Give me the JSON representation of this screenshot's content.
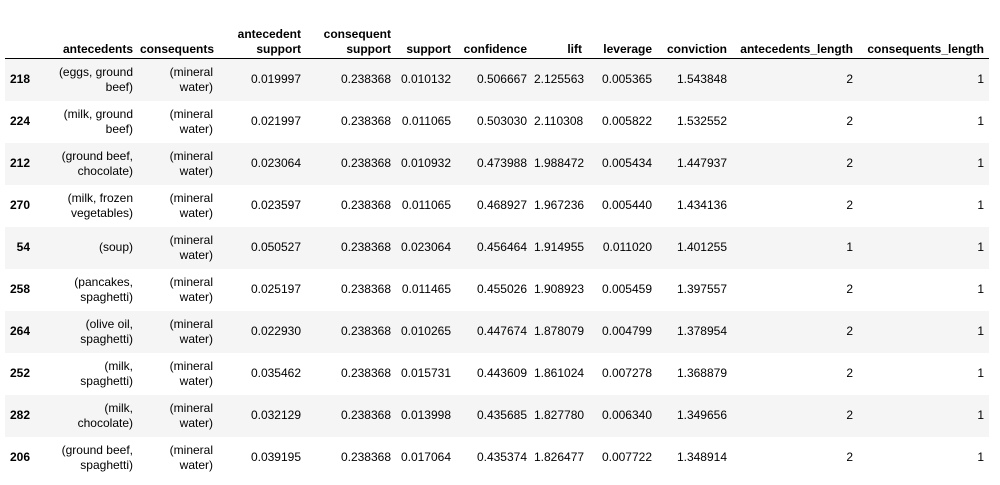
{
  "table": {
    "columns": [
      {
        "label_lines": [
          "antecedents"
        ]
      },
      {
        "label_lines": [
          "consequents"
        ]
      },
      {
        "label_lines": [
          "antecedent",
          "support"
        ]
      },
      {
        "label_lines": [
          "consequent",
          "support"
        ]
      },
      {
        "label_lines": [
          "support"
        ]
      },
      {
        "label_lines": [
          "confidence"
        ]
      },
      {
        "label_lines": [
          "lift"
        ]
      },
      {
        "label_lines": [
          "leverage"
        ]
      },
      {
        "label_lines": [
          "conviction"
        ]
      },
      {
        "label_lines": [
          "antecedents_length"
        ]
      },
      {
        "label_lines": [
          "consequents_length"
        ]
      }
    ],
    "rows": [
      {
        "index": "218",
        "antecedents": [
          "(eggs, ground",
          "beef)"
        ],
        "consequents": [
          "(mineral",
          "water)"
        ],
        "antecedent_support": "0.019997",
        "consequent_support": "0.238368",
        "support": "0.010132",
        "confidence": "0.506667",
        "lift": "2.125563",
        "leverage": "0.005365",
        "conviction": "1.543848",
        "antecedents_length": "2",
        "consequents_length": "1"
      },
      {
        "index": "224",
        "antecedents": [
          "(milk, ground",
          "beef)"
        ],
        "consequents": [
          "(mineral",
          "water)"
        ],
        "antecedent_support": "0.021997",
        "consequent_support": "0.238368",
        "support": "0.011065",
        "confidence": "0.503030",
        "lift": "2.110308",
        "leverage": "0.005822",
        "conviction": "1.532552",
        "antecedents_length": "2",
        "consequents_length": "1"
      },
      {
        "index": "212",
        "antecedents": [
          "(ground beef,",
          "chocolate)"
        ],
        "consequents": [
          "(mineral",
          "water)"
        ],
        "antecedent_support": "0.023064",
        "consequent_support": "0.238368",
        "support": "0.010932",
        "confidence": "0.473988",
        "lift": "1.988472",
        "leverage": "0.005434",
        "conviction": "1.447937",
        "antecedents_length": "2",
        "consequents_length": "1"
      },
      {
        "index": "270",
        "antecedents": [
          "(milk, frozen",
          "vegetables)"
        ],
        "consequents": [
          "(mineral",
          "water)"
        ],
        "antecedent_support": "0.023597",
        "consequent_support": "0.238368",
        "support": "0.011065",
        "confidence": "0.468927",
        "lift": "1.967236",
        "leverage": "0.005440",
        "conviction": "1.434136",
        "antecedents_length": "2",
        "consequents_length": "1"
      },
      {
        "index": "54",
        "antecedents": [
          "(soup)"
        ],
        "consequents": [
          "(mineral",
          "water)"
        ],
        "antecedent_support": "0.050527",
        "consequent_support": "0.238368",
        "support": "0.023064",
        "confidence": "0.456464",
        "lift": "1.914955",
        "leverage": "0.011020",
        "conviction": "1.401255",
        "antecedents_length": "1",
        "consequents_length": "1"
      },
      {
        "index": "258",
        "antecedents": [
          "(pancakes,",
          "spaghetti)"
        ],
        "consequents": [
          "(mineral",
          "water)"
        ],
        "antecedent_support": "0.025197",
        "consequent_support": "0.238368",
        "support": "0.011465",
        "confidence": "0.455026",
        "lift": "1.908923",
        "leverage": "0.005459",
        "conviction": "1.397557",
        "antecedents_length": "2",
        "consequents_length": "1"
      },
      {
        "index": "264",
        "antecedents": [
          "(olive oil,",
          "spaghetti)"
        ],
        "consequents": [
          "(mineral",
          "water)"
        ],
        "antecedent_support": "0.022930",
        "consequent_support": "0.238368",
        "support": "0.010265",
        "confidence": "0.447674",
        "lift": "1.878079",
        "leverage": "0.004799",
        "conviction": "1.378954",
        "antecedents_length": "2",
        "consequents_length": "1"
      },
      {
        "index": "252",
        "antecedents": [
          "(milk,",
          "spaghetti)"
        ],
        "consequents": [
          "(mineral",
          "water)"
        ],
        "antecedent_support": "0.035462",
        "consequent_support": "0.238368",
        "support": "0.015731",
        "confidence": "0.443609",
        "lift": "1.861024",
        "leverage": "0.007278",
        "conviction": "1.368879",
        "antecedents_length": "2",
        "consequents_length": "1"
      },
      {
        "index": "282",
        "antecedents": [
          "(milk,",
          "chocolate)"
        ],
        "consequents": [
          "(mineral",
          "water)"
        ],
        "antecedent_support": "0.032129",
        "consequent_support": "0.238368",
        "support": "0.013998",
        "confidence": "0.435685",
        "lift": "1.827780",
        "leverage": "0.006340",
        "conviction": "1.349656",
        "antecedents_length": "2",
        "consequents_length": "1"
      },
      {
        "index": "206",
        "antecedents": [
          "(ground beef,",
          "spaghetti)"
        ],
        "consequents": [
          "(mineral",
          "water)"
        ],
        "antecedent_support": "0.039195",
        "consequent_support": "0.238368",
        "support": "0.017064",
        "confidence": "0.435374",
        "lift": "1.826477",
        "leverage": "0.007722",
        "conviction": "1.348914",
        "antecedents_length": "2",
        "consequents_length": "1"
      }
    ]
  }
}
